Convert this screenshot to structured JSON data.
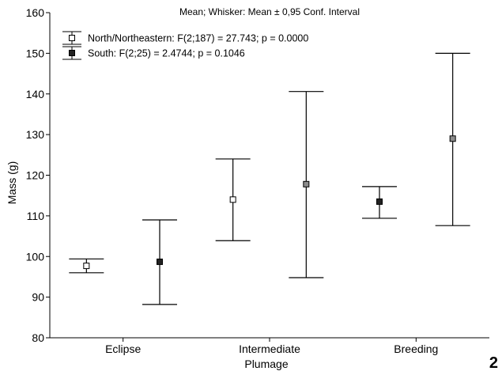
{
  "chart_data": {
    "type": "errorbar",
    "title": "Mean; Whisker: Mean ± 0,95 Conf. Interval",
    "xlabel": "Plumage",
    "ylabel": "Mass (g)",
    "ylim": [
      80,
      160
    ],
    "yticks": [
      80,
      90,
      100,
      110,
      120,
      130,
      140,
      150,
      160
    ],
    "categories": [
      "Eclipse",
      "Intermediate",
      "Breeding"
    ],
    "legend_position": "top-left",
    "grid": false,
    "series": [
      {
        "name": "North/Northeastern: F(2;187) = 27.743; p = 0.0000",
        "marker": "square-open",
        "mean": [
          97.7,
          114.0,
          113.5
        ],
        "lower": [
          96.0,
          103.9,
          109.4
        ],
        "upper": [
          99.4,
          124.0,
          117.2
        ],
        "colors": [
          "#ffffff",
          "#ffffff",
          "#222222"
        ]
      },
      {
        "name": "South: F(2;25) = 2.4744; p = 0.1046",
        "marker": "square-filled",
        "mean": [
          98.7,
          117.8,
          129.0
        ],
        "lower": [
          88.2,
          94.8,
          107.6
        ],
        "upper": [
          109.0,
          140.6,
          150.0
        ],
        "colors": [
          "#222222",
          "#8c8c8c",
          "#8c8c8c"
        ]
      }
    ],
    "panel_label": "2"
  }
}
